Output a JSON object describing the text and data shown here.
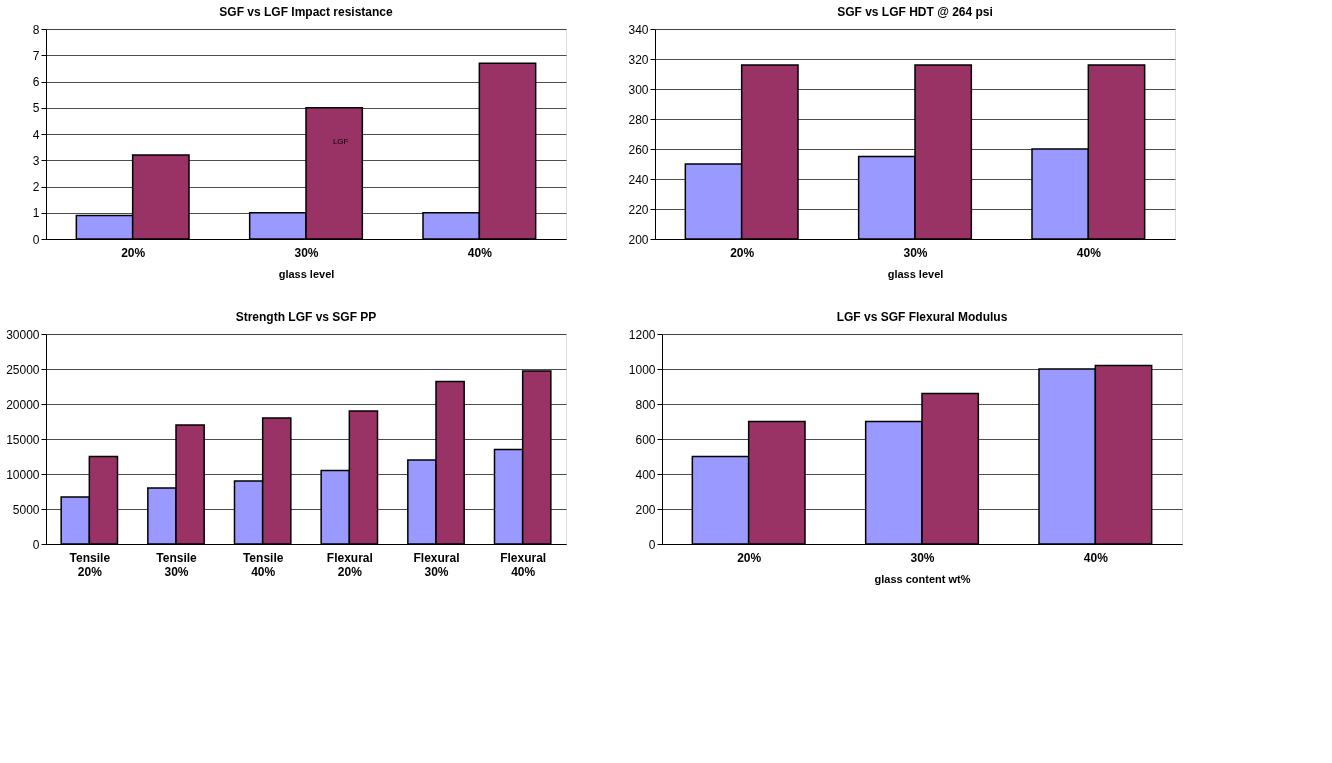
{
  "chart_data": [
    {
      "type": "bar",
      "title": "SGF vs LGF Impact resistance",
      "xlabel": "glass level",
      "categories": [
        "20%",
        "30%",
        "40%"
      ],
      "series": [
        {
          "color": "#9999ff",
          "values": [
            0.9,
            1.0,
            1.0
          ]
        },
        {
          "color": "#993366",
          "values": [
            3.2,
            5.0,
            6.7
          ]
        }
      ],
      "ylim": [
        0,
        8
      ],
      "yticks": [
        0,
        1,
        2,
        3,
        4,
        5,
        6,
        7,
        8
      ],
      "grid": "y",
      "legend": false,
      "annotations": [
        "LGF"
      ]
    },
    {
      "type": "bar",
      "title": "SGF vs LGF HDT @ 264 psi",
      "xlabel": "glass level",
      "categories": [
        "20%",
        "30%",
        "40%"
      ],
      "series": [
        {
          "color": "#9999ff",
          "values": [
            250,
            255,
            260
          ]
        },
        {
          "color": "#993366",
          "values": [
            316,
            316,
            316
          ]
        }
      ],
      "ylim": [
        200,
        340
      ],
      "yticks": [
        200,
        220,
        240,
        260,
        280,
        300,
        320,
        340
      ],
      "grid": "y",
      "legend": false
    },
    {
      "type": "bar",
      "title": "Strength LGF vs SGF PP",
      "categories": [
        "Tensile 20%",
        "Tensile 30%",
        "Tensile 40%",
        "Flexural 20%",
        "Flexural 30%",
        "Flexural 40%"
      ],
      "series": [
        {
          "color": "#9999ff",
          "values": [
            6700,
            8000,
            9000,
            10500,
            12000,
            13500
          ]
        },
        {
          "color": "#993366",
          "values": [
            12500,
            17000,
            18000,
            19000,
            23200,
            24700
          ]
        }
      ],
      "ylim": [
        0,
        30000
      ],
      "yticks": [
        0,
        5000,
        10000,
        15000,
        20000,
        25000,
        30000
      ],
      "grid": "y",
      "legend": false
    },
    {
      "type": "bar",
      "title": "LGF vs SGF Flexural Modulus",
      "xlabel": "glass content wt%",
      "categories": [
        "20%",
        "30%",
        "40%"
      ],
      "series": [
        {
          "color": "#9999ff",
          "values": [
            500,
            700,
            1000
          ]
        },
        {
          "color": "#993366",
          "values": [
            700,
            860,
            1020
          ]
        }
      ],
      "ylim": [
        0,
        1200
      ],
      "yticks": [
        0,
        200,
        400,
        600,
        800,
        1000,
        1200
      ],
      "grid": "y",
      "legend": false
    }
  ]
}
